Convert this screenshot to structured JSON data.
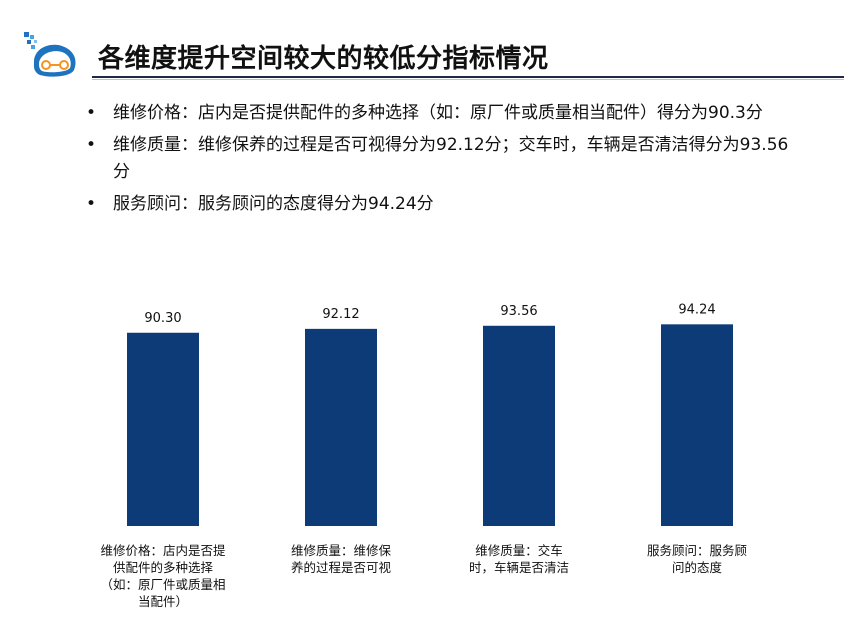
{
  "header": {
    "title": "各维度提升空间较大的较低分指标情况"
  },
  "bullets": [
    "维修价格：店内是否提供配件的多种选择（如：原厂件或质量相当配件）得分为90.3分",
    "维修质量：维修保养的过程是否可视得分为92.12分；交车时，车辆是否清洁得分为93.56分",
    "服务顾问：服务顾问的态度得分为94.24分"
  ],
  "colors": {
    "bar": "#0d3b77",
    "logo_blue": "#1e73be",
    "logo_orange": "#f7941d"
  },
  "chart_data": {
    "type": "bar",
    "categories": [
      [
        "维修价格：店内是否提",
        "供配件的多种选择",
        "（如：原厂件或质量相",
        "当配件）"
      ],
      [
        "维修质量：维修保",
        "养的过程是否可视"
      ],
      [
        "维修质量：交车",
        "时，车辆是否清洁"
      ],
      [
        "服务顾问：服务顾",
        "问的态度"
      ]
    ],
    "values": [
      90.3,
      92.12,
      93.56,
      94.24
    ],
    "value_labels": [
      "90.30",
      "92.12",
      "93.56",
      "94.24"
    ],
    "title": "",
    "xlabel": "",
    "ylabel": "",
    "ylim": [
      0,
      100
    ],
    "grid": false,
    "legend": "none"
  }
}
